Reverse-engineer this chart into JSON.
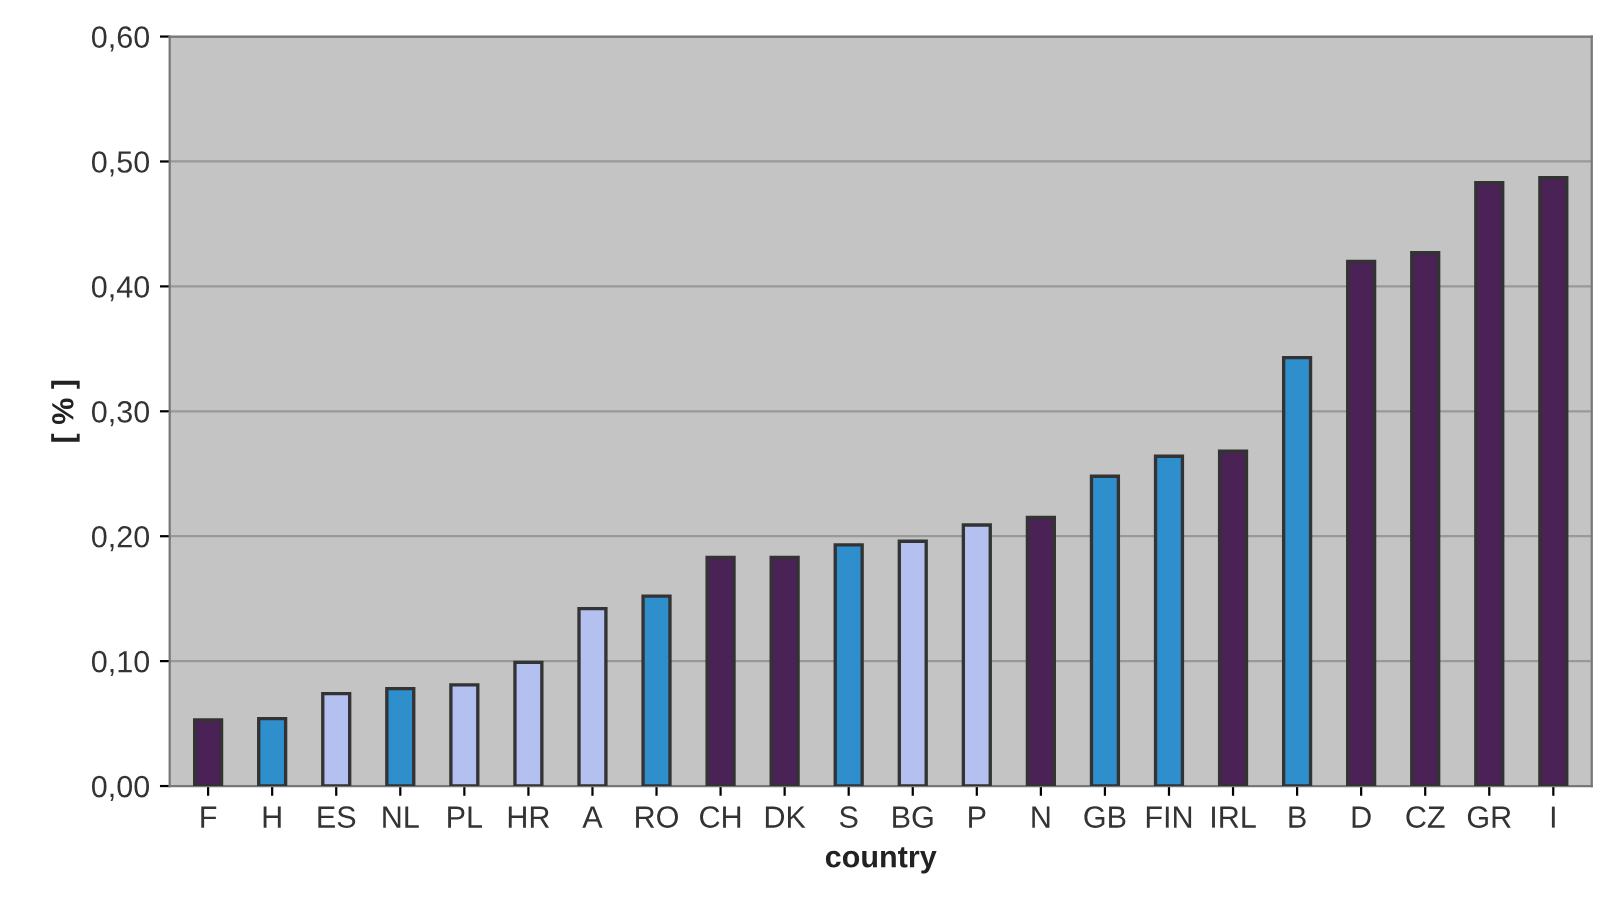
{
  "chart_data": {
    "type": "bar",
    "xlabel": "country",
    "ylabel": "[ % ]",
    "categories": [
      "F",
      "H",
      "ES",
      "NL",
      "PL",
      "HR",
      "A",
      "RO",
      "CH",
      "DK",
      "S",
      "BG",
      "P",
      "N",
      "GB",
      "FIN",
      "IRL",
      "B",
      "D",
      "CZ",
      "GR",
      "I"
    ],
    "values": [
      0.053,
      0.054,
      0.074,
      0.078,
      0.081,
      0.099,
      0.142,
      0.152,
      0.183,
      0.183,
      0.193,
      0.196,
      0.209,
      0.215,
      0.248,
      0.264,
      0.268,
      0.343,
      0.42,
      0.427,
      0.483,
      0.487
    ],
    "colors": [
      "#4a2255",
      "#2f8fcc",
      "#b4c0f0",
      "#2f8fcc",
      "#b4c0f0",
      "#b4c0f0",
      "#b4c0f0",
      "#2f8fcc",
      "#4a2255",
      "#4a2255",
      "#2f8fcc",
      "#b4c0f0",
      "#b4c0f0",
      "#4a2255",
      "#2f8fcc",
      "#2f8fcc",
      "#4a2255",
      "#2f8fcc",
      "#4a2255",
      "#4a2255",
      "#4a2255",
      "#4a2255"
    ],
    "ylim": [
      0,
      0.6
    ],
    "yticks": [
      {
        "value": 0,
        "label": "0,00"
      },
      {
        "value": 0.1,
        "label": "0,10"
      },
      {
        "value": 0.2,
        "label": "0,20"
      },
      {
        "value": 0.3,
        "label": "0,30"
      },
      {
        "value": 0.4,
        "label": "0,40"
      },
      {
        "value": 0.5,
        "label": "0,50"
      },
      {
        "value": 0.6,
        "label": "0,60"
      }
    ],
    "grid": "y"
  }
}
